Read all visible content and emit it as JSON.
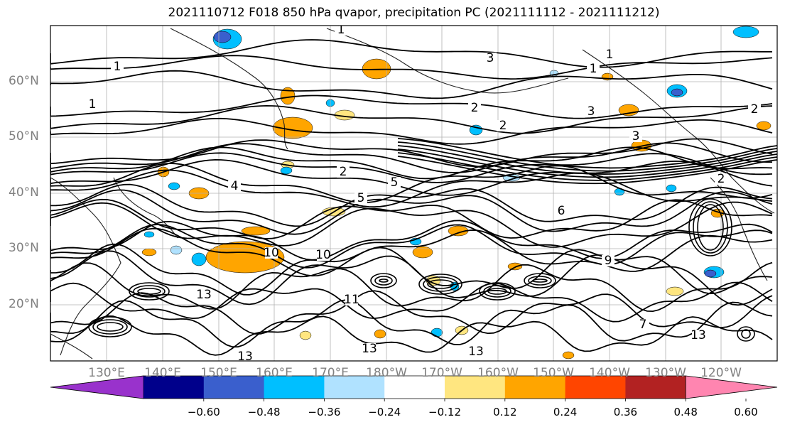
{
  "title": "2021110712 F018 850 hPa qvapor, precipitation PC (2021111112 - 2021111212)",
  "lat_labels": [
    "60°N",
    "50°N",
    "40°N",
    "30°N",
    "20°N"
  ],
  "lon_labels": [
    "130°E",
    "140°E",
    "150°E",
    "160°E",
    "170°E",
    "180°W",
    "170°W",
    "160°W",
    "150°W",
    "140°W",
    "130°W",
    "120°W"
  ],
  "colorbar": {
    "ticks": [
      "−0.60",
      "−0.48",
      "−0.36",
      "−0.24",
      "−0.12",
      "0.12",
      "0.24",
      "0.36",
      "0.48",
      "0.60"
    ],
    "colors": [
      "#9932cc",
      "#00008b",
      "#3a5fcd",
      "#00bfff",
      "#b0e2ff",
      "#ffffff",
      "#ffe680",
      "#ffa500",
      "#ff4500",
      "#b22222",
      "#ff85b0"
    ]
  },
  "contour_labels": [
    "1",
    "1",
    "1",
    "1",
    "1",
    "2",
    "2",
    "2",
    "2",
    "2",
    "3",
    "3",
    "3",
    "4",
    "5",
    "5",
    "6",
    "7",
    "9",
    "10",
    "10",
    "11",
    "13",
    "13",
    "13",
    "13",
    "13"
  ],
  "shading_colors": {
    "positive_low": "#ffe680",
    "positive_mid": "#ffa500",
    "positive_high": "#ff4500",
    "negative_low": "#b0e2ff",
    "negative_mid": "#00bfff",
    "negative_high": "#3a5fcd"
  }
}
